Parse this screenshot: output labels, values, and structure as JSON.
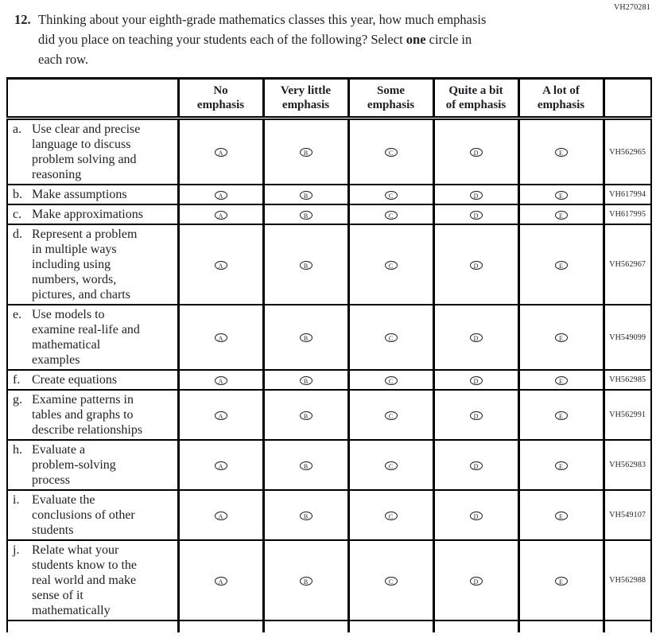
{
  "page": {
    "form_code": "VH270281"
  },
  "question": {
    "number": "12.",
    "text_before": "Thinking about your eighth-grade mathematics classes this year, how much emphasis\ndid you place on teaching your students each of the following? Select ",
    "bold_word": "one",
    "text_after": " circle in\neach row."
  },
  "table": {
    "column_headers": [
      "No\nemphasis",
      "Very little\nemphasis",
      "Some\nemphasis",
      "Quite a bit\nof emphasis",
      "A lot of\nemphasis"
    ],
    "option_letters": [
      "A",
      "B",
      "C",
      "D",
      "E"
    ],
    "rows": [
      {
        "letter": "a.",
        "label": "Use clear and precise\nlanguage to discuss\nproblem solving and\nreasoning",
        "code": "VH562965"
      },
      {
        "letter": "b.",
        "label": "Make assumptions",
        "code": "VH617994"
      },
      {
        "letter": "c.",
        "label": "Make approximations",
        "code": "VH617995"
      },
      {
        "letter": "d.",
        "label": "Represent a problem\nin multiple ways\nincluding using\nnumbers, words,\npictures, and charts",
        "code": "VH562967"
      },
      {
        "letter": "e.",
        "label": "Use models to\nexamine real-life and\nmathematical\nexamples",
        "code": "VH549099"
      },
      {
        "letter": "f.",
        "label": "Create equations",
        "code": "VH562985"
      },
      {
        "letter": "g.",
        "label": "Examine patterns in\ntables and graphs to\ndescribe relationships",
        "code": "VH562991"
      },
      {
        "letter": "h.",
        "label": "Evaluate a\nproblem-solving\nprocess",
        "code": "VH562983"
      },
      {
        "letter": "i.",
        "label": "Evaluate the\nconclusions of other\nstudents",
        "code": "VH549107"
      },
      {
        "letter": "j.",
        "label": "Relate what your\nstudents know to the\nreal world and make\nsense of it\nmathematically",
        "code": "VH562988"
      }
    ]
  },
  "colors": {
    "text": "#1f1f23",
    "border": "#000000",
    "background": "#ffffff"
  }
}
